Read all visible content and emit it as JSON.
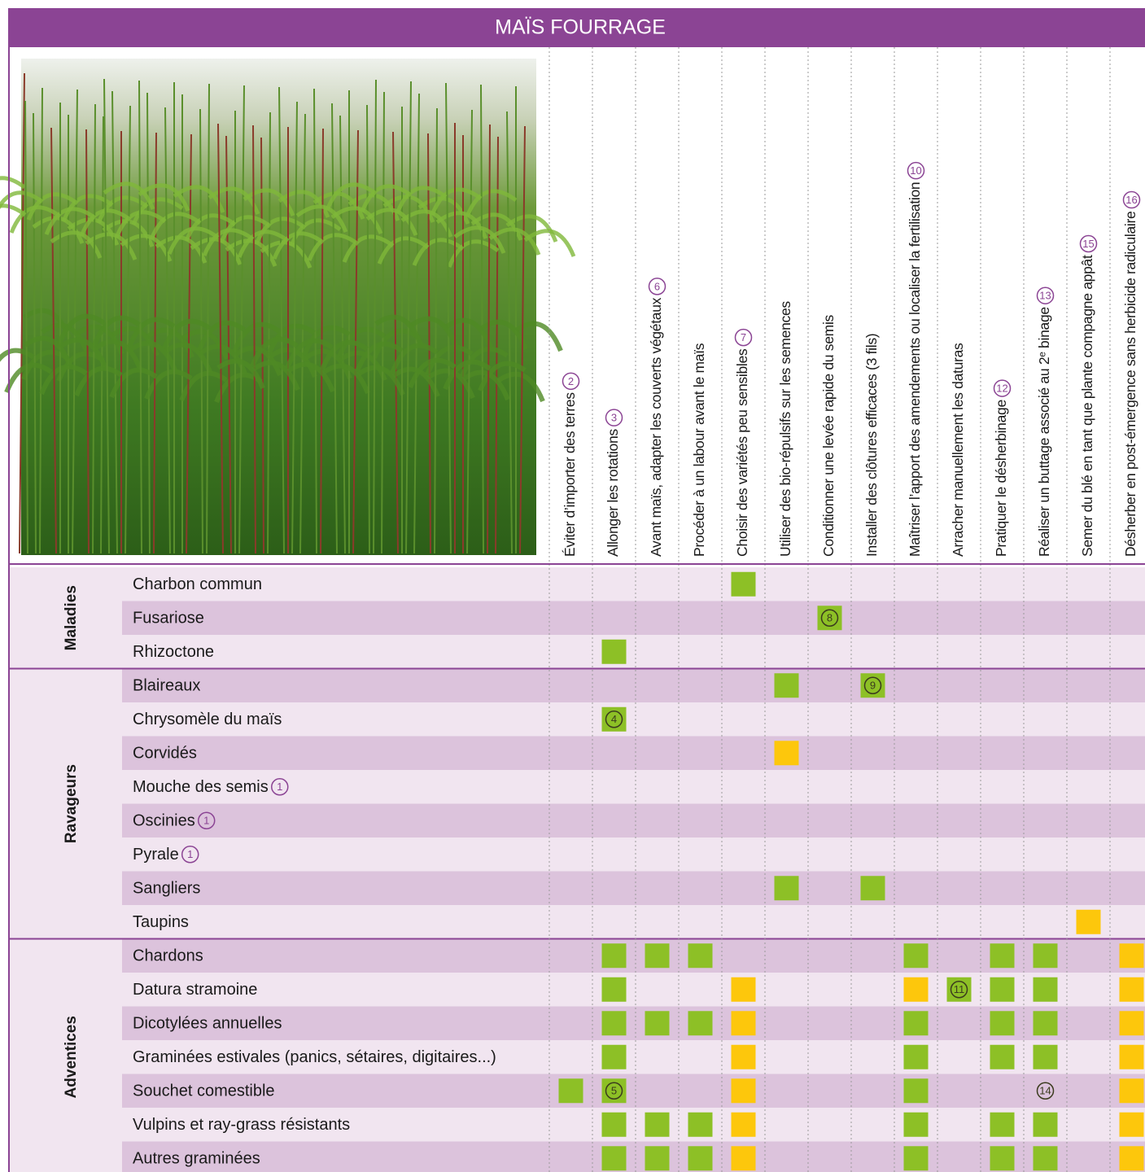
{
  "header": {
    "title": "MAÏS FOURRAGE"
  },
  "columns": [
    {
      "label": "Éviter d’importer des terres",
      "note": 2
    },
    {
      "label": "Allonger les rotations",
      "note": 3
    },
    {
      "label": "Avant maïs, adapter les couverts végétaux",
      "note": 6
    },
    {
      "label": "Procéder à un labour avant le maïs"
    },
    {
      "label": "Choisir des variétés peu sensibles",
      "note": 7
    },
    {
      "label": "Utiliser des bio-répulsifs sur les semences"
    },
    {
      "label": "Conditionner une levée rapide du semis"
    },
    {
      "label": "Installer des clôtures efficaces (3 fils)"
    },
    {
      "label": "Maîtriser l’apport des amendements ou localiser la fertilisation",
      "note": 10
    },
    {
      "label": "Arracher manuellement les daturas"
    },
    {
      "label": "Pratiquer le désherbinage",
      "note": 12
    },
    {
      "label": "Réaliser un buttage associé au 2ᵉ binage",
      "note": 13
    },
    {
      "label": "Semer du blé en tant que plante compagne appât",
      "note": 15
    },
    {
      "label": "Désherber en post-émergence sans herbicide radiculaire",
      "note": 16
    }
  ],
  "groups": [
    {
      "name": "Maladies",
      "rows": [
        {
          "label": "Charbon commun",
          "cells": [
            null,
            null,
            null,
            null,
            {
              "color": "#8dc026"
            },
            null,
            null,
            null,
            null,
            null,
            null,
            null,
            null,
            null
          ]
        },
        {
          "label": "Fusariose",
          "cells": [
            null,
            null,
            null,
            null,
            null,
            null,
            {
              "color": "#8dc026",
              "note": 8
            },
            null,
            null,
            null,
            null,
            null,
            null,
            null
          ]
        },
        {
          "label": "Rhizoctone",
          "cells": [
            null,
            {
              "color": "#8dc026"
            },
            null,
            null,
            null,
            null,
            null,
            null,
            null,
            null,
            null,
            null,
            null,
            null
          ]
        }
      ]
    },
    {
      "name": "Ravageurs",
      "rows": [
        {
          "label": "Blaireaux",
          "cells": [
            null,
            null,
            null,
            null,
            null,
            {
              "color": "#8dc026"
            },
            null,
            {
              "color": "#8dc026",
              "note": 9
            },
            null,
            null,
            null,
            null,
            null,
            null
          ]
        },
        {
          "label": "Chrysomèle du maïs",
          "cells": [
            null,
            {
              "color": "#8dc026",
              "note": 4
            },
            null,
            null,
            null,
            null,
            null,
            null,
            null,
            null,
            null,
            null,
            null,
            null
          ]
        },
        {
          "label": "Corvidés",
          "cells": [
            null,
            null,
            null,
            null,
            null,
            {
              "color": "#fdc70c"
            },
            null,
            null,
            null,
            null,
            null,
            null,
            null,
            null
          ]
        },
        {
          "label": "Mouche des semis",
          "note": 1,
          "cells": [
            null,
            null,
            null,
            null,
            null,
            null,
            null,
            null,
            null,
            null,
            null,
            null,
            null,
            null
          ]
        },
        {
          "label": "Oscinies",
          "note": 1,
          "cells": [
            null,
            null,
            null,
            null,
            null,
            null,
            null,
            null,
            null,
            null,
            null,
            null,
            null,
            null
          ]
        },
        {
          "label": "Pyrale",
          "note": 1,
          "cells": [
            null,
            null,
            null,
            null,
            null,
            null,
            null,
            null,
            null,
            null,
            null,
            null,
            null,
            null
          ]
        },
        {
          "label": "Sangliers",
          "cells": [
            null,
            null,
            null,
            null,
            null,
            {
              "color": "#8dc026"
            },
            null,
            {
              "color": "#8dc026"
            },
            null,
            null,
            null,
            null,
            null,
            null
          ]
        },
        {
          "label": "Taupins",
          "cells": [
            null,
            null,
            null,
            null,
            null,
            null,
            null,
            null,
            null,
            null,
            null,
            null,
            {
              "color": "#fdc70c"
            },
            null
          ]
        }
      ]
    },
    {
      "name": "Adventices",
      "rows": [
        {
          "label": "Chardons",
          "cells": [
            null,
            {
              "color": "#8dc026"
            },
            {
              "color": "#8dc026"
            },
            {
              "color": "#8dc026"
            },
            null,
            null,
            null,
            null,
            {
              "color": "#8dc026"
            },
            null,
            {
              "color": "#8dc026"
            },
            {
              "color": "#8dc026"
            },
            null,
            {
              "color": "#fdc70c"
            }
          ]
        },
        {
          "label": "Datura stramoine",
          "cells": [
            null,
            {
              "color": "#8dc026"
            },
            null,
            null,
            {
              "color": "#fdc70c"
            },
            null,
            null,
            null,
            {
              "color": "#fdc70c"
            },
            {
              "color": "#8dc026",
              "note": 11
            },
            {
              "color": "#8dc026"
            },
            {
              "color": "#8dc026"
            },
            null,
            {
              "color": "#fdc70c"
            }
          ]
        },
        {
          "label": "Dicotylées annuelles",
          "cells": [
            null,
            {
              "color": "#8dc026"
            },
            {
              "color": "#8dc026"
            },
            {
              "color": "#8dc026"
            },
            {
              "color": "#fdc70c"
            },
            null,
            null,
            null,
            {
              "color": "#8dc026"
            },
            null,
            {
              "color": "#8dc026"
            },
            {
              "color": "#8dc026"
            },
            null,
            {
              "color": "#fdc70c"
            }
          ]
        },
        {
          "label": "Graminées estivales (panics, sétaires, digitaires...)",
          "cells": [
            null,
            {
              "color": "#8dc026"
            },
            null,
            null,
            {
              "color": "#fdc70c"
            },
            null,
            null,
            null,
            {
              "color": "#8dc026"
            },
            null,
            {
              "color": "#8dc026"
            },
            {
              "color": "#8dc026"
            },
            null,
            {
              "color": "#fdc70c"
            }
          ]
        },
        {
          "label": "Souchet comestible",
          "cells": [
            {
              "color": "#8dc026"
            },
            {
              "color": "#8dc026",
              "note": 5
            },
            null,
            null,
            {
              "color": "#fdc70c"
            },
            null,
            null,
            null,
            {
              "color": "#8dc026"
            },
            null,
            null,
            {
              "note": 14
            },
            null,
            {
              "color": "#fdc70c"
            }
          ]
        },
        {
          "label": "Vulpins et ray-grass résistants",
          "cells": [
            null,
            {
              "color": "#8dc026"
            },
            {
              "color": "#8dc026"
            },
            {
              "color": "#8dc026"
            },
            {
              "color": "#fdc70c"
            },
            null,
            null,
            null,
            {
              "color": "#8dc026"
            },
            null,
            {
              "color": "#8dc026"
            },
            {
              "color": "#8dc026"
            },
            null,
            {
              "color": "#fdc70c"
            }
          ]
        },
        {
          "label": "Autres graminées",
          "cells": [
            null,
            {
              "color": "#8dc026"
            },
            {
              "color": "#8dc026"
            },
            {
              "color": "#8dc026"
            },
            {
              "color": "#fdc70c"
            },
            null,
            null,
            null,
            {
              "color": "#8dc026"
            },
            null,
            {
              "color": "#8dc026"
            },
            {
              "color": "#8dc026"
            },
            null,
            {
              "color": "#fdc70c"
            }
          ]
        }
      ]
    }
  ]
}
